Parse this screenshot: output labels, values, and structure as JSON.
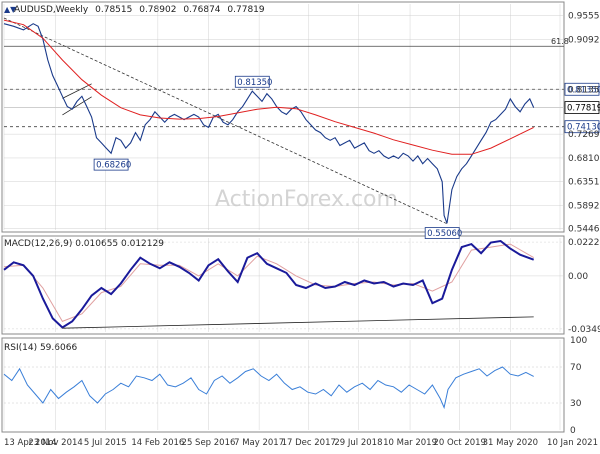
{
  "colors": {
    "price": "#1a3a8a",
    "ema": "#e02020",
    "macd": "#1a1a9a",
    "signal": "#e0a0a0",
    "rsi": "#3a7fd8",
    "grid": "#c8c8c8",
    "refline": "#444444",
    "watermark": "#d0d0d0",
    "label_box": "#1a3a8a"
  },
  "watermark": "ActionForex.com",
  "chart_data": [
    {
      "panel": "price",
      "type": "line",
      "title": "AUDUSD,Weekly",
      "ohlc": {
        "open": "0.78515",
        "high": "0.78902",
        "low": "0.76874",
        "close": "0.77819"
      },
      "y_ticks": [
        0.9555,
        0.9092,
        0.8135,
        0.7269,
        0.681,
        0.6351,
        0.5892,
        0.54465
      ],
      "y_tick_labels": [
        "0.95550",
        "0.90920",
        "0.81350",
        "0.72690",
        "0.68100",
        "0.63510",
        "0.58920",
        "0.54465"
      ],
      "ylim": [
        0.542,
        0.978
      ],
      "fib_label": "61.8",
      "fib_level": 0.8965,
      "hlines": [
        {
          "value": 0.8135,
          "label": "0.81350"
        },
        {
          "value": 0.7413,
          "label": "0.74130"
        }
      ],
      "current_price": {
        "value": 0.77819,
        "label": "0.77819"
      },
      "annotations": [
        {
          "t": 110,
          "value": 0.6826,
          "label": "0.68260",
          "anchor": "below"
        },
        {
          "t": 255,
          "value": 0.8135,
          "label": "0.81350",
          "anchor": "above"
        },
        {
          "t": 450,
          "value": 0.5506,
          "label": "0.55060",
          "anchor": "below"
        }
      ],
      "trend_line": {
        "t": [
          0,
          455
        ],
        "value": [
          0.951,
          0.554
        ]
      },
      "wedge_lines": [
        {
          "t": [
            60,
            90
          ],
          "value": [
            0.764,
            0.799
          ]
        },
        {
          "t": [
            60,
            90
          ],
          "value": [
            0.796,
            0.824
          ]
        }
      ],
      "ema_points": {
        "t": [
          0,
          20,
          40,
          60,
          80,
          100,
          120,
          140,
          160,
          180,
          200,
          220,
          240,
          260,
          280,
          300,
          320,
          340,
          360,
          380,
          400,
          420,
          440,
          460,
          480,
          500,
          520,
          544
        ],
        "value": [
          0.947,
          0.938,
          0.912,
          0.87,
          0.832,
          0.802,
          0.778,
          0.764,
          0.758,
          0.756,
          0.757,
          0.761,
          0.768,
          0.775,
          0.779,
          0.776,
          0.764,
          0.751,
          0.74,
          0.729,
          0.716,
          0.706,
          0.696,
          0.688,
          0.688,
          0.7,
          0.718,
          0.74
        ]
      },
      "price_points": {
        "t": [
          0,
          10,
          20,
          30,
          35,
          40,
          45,
          50,
          55,
          60,
          65,
          70,
          75,
          80,
          85,
          90,
          95,
          100,
          105,
          110,
          115,
          120,
          125,
          130,
          135,
          140,
          145,
          150,
          155,
          160,
          165,
          170,
          175,
          180,
          185,
          190,
          195,
          200,
          205,
          210,
          215,
          220,
          225,
          230,
          235,
          240,
          245,
          250,
          255,
          260,
          265,
          270,
          275,
          280,
          285,
          290,
          295,
          300,
          305,
          310,
          315,
          320,
          325,
          330,
          335,
          340,
          345,
          350,
          355,
          360,
          365,
          370,
          375,
          380,
          385,
          390,
          395,
          400,
          405,
          410,
          415,
          420,
          425,
          430,
          435,
          440,
          445,
          450,
          452,
          455,
          460,
          465,
          470,
          475,
          480,
          485,
          490,
          495,
          500,
          505,
          510,
          515,
          520,
          525,
          530,
          535,
          540,
          544
        ],
        "value": [
          0.94,
          0.935,
          0.928,
          0.94,
          0.935,
          0.91,
          0.87,
          0.84,
          0.82,
          0.8,
          0.78,
          0.775,
          0.79,
          0.8,
          0.78,
          0.76,
          0.72,
          0.71,
          0.7,
          0.69,
          0.72,
          0.715,
          0.7,
          0.71,
          0.73,
          0.715,
          0.745,
          0.755,
          0.77,
          0.76,
          0.75,
          0.76,
          0.765,
          0.76,
          0.755,
          0.76,
          0.765,
          0.76,
          0.745,
          0.74,
          0.76,
          0.765,
          0.75,
          0.745,
          0.755,
          0.77,
          0.78,
          0.795,
          0.81,
          0.8,
          0.79,
          0.805,
          0.795,
          0.78,
          0.77,
          0.765,
          0.775,
          0.78,
          0.77,
          0.755,
          0.745,
          0.735,
          0.73,
          0.72,
          0.715,
          0.72,
          0.705,
          0.71,
          0.715,
          0.7,
          0.705,
          0.71,
          0.695,
          0.69,
          0.695,
          0.685,
          0.68,
          0.685,
          0.68,
          0.69,
          0.685,
          0.675,
          0.685,
          0.67,
          0.68,
          0.67,
          0.66,
          0.635,
          0.57,
          0.555,
          0.62,
          0.645,
          0.66,
          0.67,
          0.685,
          0.7,
          0.715,
          0.73,
          0.75,
          0.755,
          0.765,
          0.775,
          0.795,
          0.78,
          0.77,
          0.785,
          0.795,
          0.7782
        ]
      }
    },
    {
      "panel": "macd",
      "type": "line",
      "title": "MACD(12,26,9) 0.010655 0.012129",
      "y_tick_labels": [
        "0.022295",
        "0.00",
        "-0.034948"
      ],
      "y_ticks": [
        0.022295,
        0.0,
        -0.034948
      ],
      "ylim": [
        -0.037,
        0.025
      ],
      "macd_points": {
        "t": [
          0,
          10,
          20,
          30,
          40,
          50,
          60,
          70,
          80,
          90,
          100,
          110,
          120,
          130,
          140,
          150,
          160,
          170,
          180,
          190,
          200,
          210,
          220,
          230,
          240,
          250,
          260,
          270,
          280,
          290,
          300,
          310,
          320,
          330,
          340,
          350,
          360,
          370,
          380,
          390,
          400,
          410,
          420,
          430,
          440,
          450,
          460,
          470,
          480,
          490,
          500,
          510,
          520,
          530,
          544
        ],
        "value": [
          0.004,
          0.009,
          0.007,
          0.0,
          -0.015,
          -0.028,
          -0.034,
          -0.03,
          -0.022,
          -0.013,
          -0.008,
          -0.012,
          -0.005,
          0.004,
          0.012,
          0.008,
          0.005,
          0.009,
          0.006,
          0.002,
          -0.003,
          0.007,
          0.011,
          0.003,
          -0.004,
          0.012,
          0.015,
          0.008,
          0.005,
          0.002,
          -0.006,
          -0.008,
          -0.005,
          -0.008,
          -0.007,
          -0.004,
          -0.006,
          -0.003,
          -0.005,
          -0.004,
          -0.007,
          -0.005,
          -0.006,
          -0.003,
          -0.018,
          -0.015,
          0.004,
          0.019,
          0.021,
          0.015,
          0.022,
          0.023,
          0.018,
          0.014,
          0.0107
        ]
      },
      "signal_points": {
        "t": [
          0,
          20,
          40,
          60,
          80,
          100,
          120,
          140,
          160,
          180,
          200,
          220,
          240,
          260,
          280,
          300,
          320,
          340,
          360,
          380,
          400,
          420,
          440,
          460,
          480,
          500,
          520,
          544
        ],
        "value": [
          0.006,
          0.007,
          -0.008,
          -0.03,
          -0.025,
          -0.011,
          -0.007,
          0.008,
          0.007,
          0.007,
          0.0,
          0.008,
          0.0,
          0.013,
          0.008,
          0.0,
          -0.006,
          -0.007,
          -0.005,
          -0.004,
          -0.006,
          -0.005,
          -0.01,
          -0.004,
          0.017,
          0.019,
          0.021,
          0.0121
        ]
      },
      "trend_line": {
        "t": [
          60,
          544
        ],
        "value": [
          -0.0345,
          -0.027
        ]
      }
    },
    {
      "panel": "rsi",
      "type": "line",
      "title": "RSI(14) 59.6066",
      "y_tick_labels": [
        "100",
        "70",
        "30",
        "0"
      ],
      "y_ticks": [
        100,
        70,
        30,
        0
      ],
      "ylim": [
        0,
        100
      ],
      "rsi_points": {
        "t": [
          0,
          8,
          16,
          24,
          32,
          40,
          48,
          56,
          64,
          72,
          80,
          88,
          96,
          104,
          112,
          120,
          128,
          136,
          144,
          152,
          160,
          168,
          176,
          184,
          192,
          200,
          208,
          216,
          224,
          232,
          240,
          248,
          256,
          264,
          272,
          280,
          288,
          296,
          304,
          312,
          320,
          328,
          336,
          344,
          352,
          360,
          368,
          376,
          384,
          392,
          400,
          408,
          416,
          424,
          432,
          440,
          448,
          452,
          456,
          464,
          472,
          480,
          488,
          496,
          504,
          512,
          520,
          528,
          536,
          544
        ],
        "value": [
          62,
          55,
          68,
          50,
          40,
          30,
          45,
          35,
          42,
          48,
          55,
          38,
          30,
          40,
          45,
          52,
          48,
          60,
          58,
          55,
          62,
          50,
          48,
          52,
          58,
          45,
          40,
          55,
          60,
          52,
          58,
          65,
          68,
          60,
          55,
          62,
          52,
          45,
          48,
          42,
          40,
          45,
          38,
          50,
          42,
          48,
          52,
          45,
          55,
          50,
          48,
          42,
          50,
          45,
          40,
          50,
          35,
          25,
          45,
          58,
          62,
          65,
          68,
          60,
          66,
          70,
          62,
          60,
          64,
          59.6
        ]
      }
    }
  ],
  "x_axis": {
    "t_max": 544,
    "ticks": [
      {
        "t": 0,
        "label": "13 Apr 2014"
      },
      {
        "t": 53,
        "label": "23 Nov 2014"
      },
      {
        "t": 104,
        "label": "5 Jul 2015"
      },
      {
        "t": 158,
        "label": "14 Feb 2016"
      },
      {
        "t": 210,
        "label": "25 Sep 2016"
      },
      {
        "t": 262,
        "label": "7 May 2017"
      },
      {
        "t": 313,
        "label": "17 Dec 2017"
      },
      {
        "t": 364,
        "label": "29 Jul 2018"
      },
      {
        "t": 417,
        "label": "10 Mar 2019"
      },
      {
        "t": 468,
        "label": "20 Oct 2019"
      },
      {
        "t": 520,
        "label": "31 May 2020"
      },
      {
        "t": 571,
        "label": "10 Jan 2021"
      }
    ]
  }
}
